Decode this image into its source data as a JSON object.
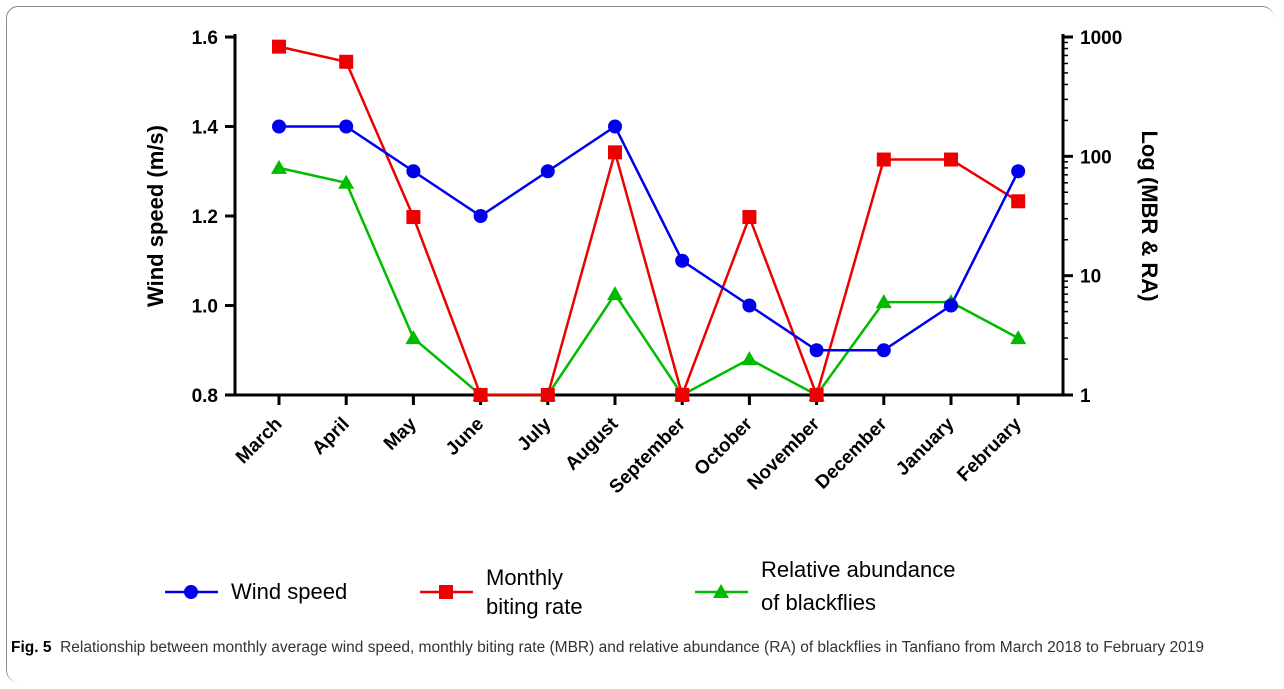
{
  "chart_data": {
    "type": "line",
    "categories": [
      "March",
      "April",
      "May",
      "June",
      "July",
      "August",
      "September",
      "October",
      "November",
      "December",
      "January",
      "February"
    ],
    "ylabel_left": "Wind speed (m/s)",
    "ylabel_right": "Log (MBR & RA)",
    "ylim_left": [
      0.8,
      1.6
    ],
    "yticks_left": [
      "0.8",
      "1.0",
      "1.2",
      "1.4",
      "1.6"
    ],
    "ylim_right": [
      1,
      1000
    ],
    "yscale_right": "log",
    "yticks_right": [
      "1",
      "10",
      "100",
      "1000"
    ],
    "series": [
      {
        "name": "Wind speed",
        "axis": "left",
        "color": "#0000ee",
        "marker": "circle",
        "values": [
          1.4,
          1.4,
          1.3,
          1.2,
          1.3,
          1.4,
          1.1,
          1.0,
          0.9,
          0.9,
          1.0,
          1.3
        ]
      },
      {
        "name_lines": [
          "Monthly",
          "biting rate"
        ],
        "axis": "right",
        "color": "#ee0000",
        "marker": "square",
        "values": [
          830,
          620,
          31,
          1,
          1,
          108,
          1,
          31,
          1,
          94,
          94,
          42
        ]
      },
      {
        "name_lines": [
          "Relative abundance",
          "of blackflies"
        ],
        "axis": "right",
        "color": "#00bb00",
        "marker": "triangle",
        "values": [
          80,
          60,
          3,
          1,
          1,
          7,
          1,
          2,
          1,
          6,
          6,
          3
        ]
      }
    ],
    "legend_position": "bottom"
  },
  "caption": {
    "label": "Fig. 5",
    "text": "Relationship between monthly average wind speed, monthly biting rate (MBR) and relative abundance (RA) of blackflies in Tanfiano from March 2018 to February 2019"
  }
}
